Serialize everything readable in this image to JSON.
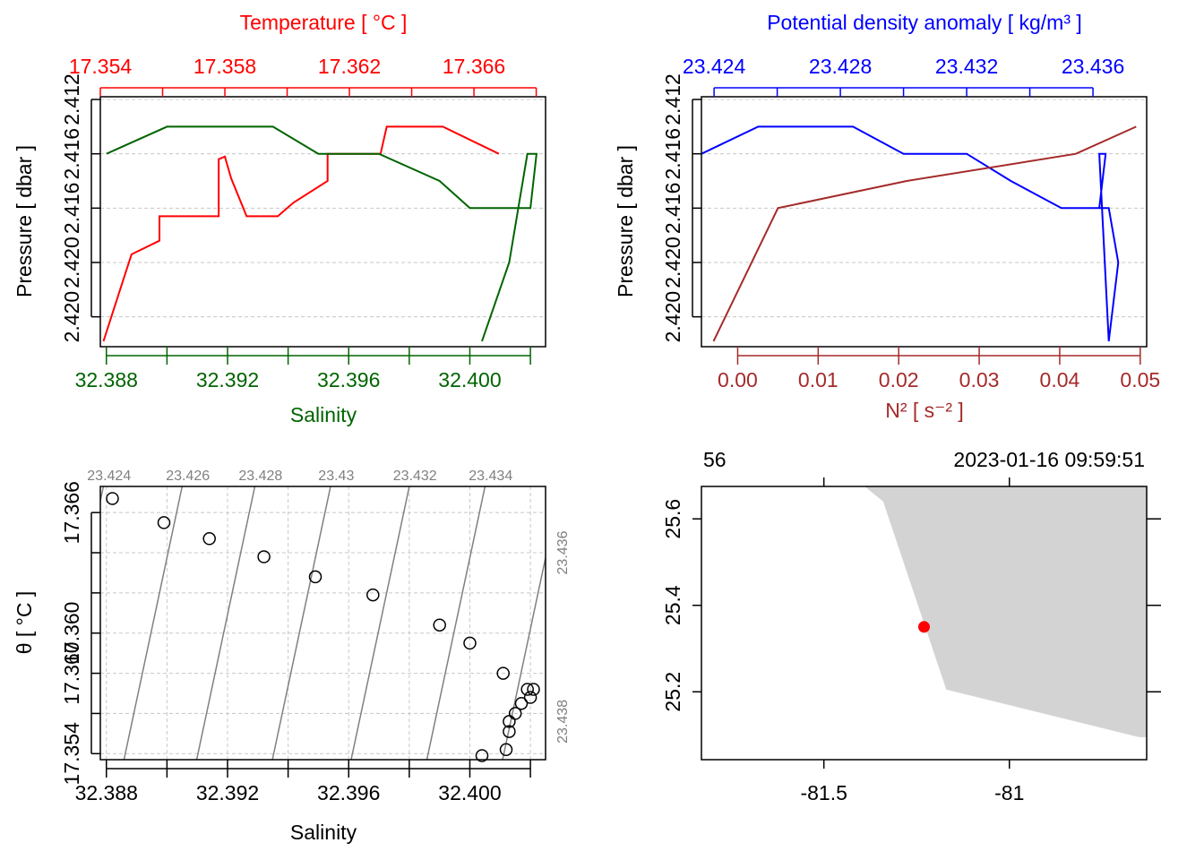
{
  "colors": {
    "temperature": "#ff0000",
    "salinity": "#006400",
    "density": "#0000ff",
    "n2": "#a52a2a",
    "grid": "#c8c8c8",
    "isopycnal": "#808080",
    "land": "#d3d3d3",
    "station": "#ff0000"
  },
  "chart_data": [
    {
      "id": "profile_TS",
      "type": "line",
      "ylabel": "Pressure [ dbar ]",
      "top_axis_label": "Temperature [ °C ]",
      "bottom_axis_label": "Salinity",
      "ylim": [
        2.4211,
        2.4119
      ],
      "yticks": [
        2.412,
        2.416,
        2.42
      ],
      "y_tick_labels": [
        "2.412",
        "2.416",
        "2.416",
        "2.420",
        "2.420"
      ],
      "temperature_xlim": [
        17.354,
        17.3683
      ],
      "temperature_ticks": [
        17.354,
        17.356,
        17.358,
        17.36,
        17.362,
        17.364,
        17.366,
        17.368
      ],
      "temperature_tick_labels": [
        "17.354",
        "17.358",
        "17.362",
        "17.366"
      ],
      "salinity_xlim": [
        32.3878,
        32.4025
      ],
      "salinity_ticks": [
        32.388,
        32.39,
        32.392,
        32.394,
        32.396,
        32.398,
        32.4,
        32.402
      ],
      "salinity_tick_labels": [
        "32.388",
        "32.392",
        "32.396",
        "32.400"
      ],
      "series": [
        {
          "name": "Temperature",
          "pressure": [
            2.4209,
            2.4177,
            2.4172,
            2.4163,
            2.4163,
            2.4142,
            2.4141,
            2.4149,
            2.4149,
            2.4163,
            2.4163,
            2.4158,
            2.415,
            2.414,
            2.414,
            2.413,
            2.413,
            2.414
          ],
          "values": [
            17.3541,
            17.355,
            17.3559,
            17.3559,
            17.3578,
            17.3578,
            17.358,
            17.3582,
            17.3582,
            17.3587,
            17.3597,
            17.3602,
            17.3613,
            17.3613,
            17.363,
            17.3632,
            17.365,
            17.3668
          ]
        },
        {
          "name": "Salinity",
          "pressure": [
            2.414,
            2.413,
            2.413,
            2.414,
            2.414,
            2.415,
            2.416,
            2.416,
            2.414,
            2.414,
            2.418,
            2.4209
          ],
          "values": [
            32.388,
            32.39,
            32.3935,
            32.395,
            32.397,
            32.399,
            32.4,
            32.402,
            32.4022,
            32.4019,
            32.4013,
            32.4004
          ]
        }
      ]
    },
    {
      "id": "profile_density_n2",
      "type": "line",
      "ylabel": "Pressure [ dbar ]",
      "top_axis_label": "Potential density anomaly [ kg/m³ ]",
      "bottom_axis_label": "N² [ s⁻² ]",
      "ylim": [
        2.4211,
        2.4119
      ],
      "y_tick_labels": [
        "2.412",
        "2.416",
        "2.416",
        "2.420",
        "2.420"
      ],
      "density_xlim": [
        23.4236,
        23.4377
      ],
      "density_ticks": [
        23.424,
        23.426,
        23.428,
        23.43,
        23.432,
        23.434,
        23.436
      ],
      "density_tick_labels": [
        "23.424",
        "23.428",
        "23.432",
        "23.436"
      ],
      "n2_xlim": [
        -0.0045,
        0.0508
      ],
      "n2_ticks": [
        0.0,
        0.01,
        0.02,
        0.03,
        0.04,
        0.05
      ],
      "n2_tick_labels": [
        "0.00",
        "0.01",
        "0.02",
        "0.03",
        "0.04",
        "0.05"
      ],
      "series": [
        {
          "name": "Potential density anomaly",
          "pressure": [
            2.414,
            2.413,
            2.413,
            2.414,
            2.414,
            2.415,
            2.416,
            2.416,
            2.418,
            2.4209,
            2.414,
            2.414,
            2.416
          ],
          "values": [
            23.4236,
            23.4254,
            23.4284,
            23.43,
            23.432,
            23.4334,
            23.435,
            23.4365,
            23.4368,
            23.4365,
            23.4362,
            23.4364,
            23.4362
          ]
        },
        {
          "name": "N2",
          "pressure": [
            2.4209,
            2.416,
            2.415,
            2.414,
            2.413,
            2.414,
            2.415,
            2.416
          ],
          "values": [
            -0.003,
            0.005,
            0.021,
            0.042,
            0.0495,
            0.042,
            0.021,
            0.005
          ]
        }
      ]
    },
    {
      "id": "ts_diagram",
      "type": "scatter",
      "xlabel": "Salinity",
      "ylabel": "θ [ °C ]",
      "xlim": [
        32.3878,
        32.4025
      ],
      "ylim": [
        17.3537,
        17.3673
      ],
      "x_tick_labels": [
        "32.388",
        "32.392",
        "32.396",
        "32.400"
      ],
      "y_tick_labels": [
        "17.354",
        "17.360",
        "17.360",
        "17.366"
      ],
      "x_ticks": [
        32.388,
        32.39,
        32.392,
        32.394,
        32.396,
        32.398,
        32.4,
        32.402
      ],
      "y_ticks": [
        17.354,
        17.356,
        17.358,
        17.36,
        17.362,
        17.364,
        17.366
      ],
      "isopycnal_labels_top": [
        "23.424",
        "23.426",
        "23.428",
        "23.43",
        "23.432",
        "23.434"
      ],
      "isopycnal_labels_right": [
        "23.436",
        "23.438"
      ],
      "isopycnal_top_salinity": [
        32.388,
        32.3906,
        32.393,
        32.3955,
        32.3981,
        32.4006
      ],
      "isopycnal_right_temperature": [
        17.364,
        17.3556
      ],
      "isopycnal_left_temperature": [
        17.3653,
        17.3569
      ],
      "isopycnal_bottom_salinity": [
        32.3891,
        32.3916,
        32.3941,
        32.3966,
        32.3991,
        32.4016
      ],
      "points": {
        "salinity": [
          32.3882,
          32.3899,
          32.3914,
          32.3932,
          32.3949,
          32.3968,
          32.399,
          32.4,
          32.4011,
          32.4019,
          32.4021,
          32.402,
          32.4017,
          32.4015,
          32.4013,
          32.4013,
          32.4012,
          32.4004
        ],
        "theta": [
          17.3667,
          17.3655,
          17.3647,
          17.3638,
          17.3628,
          17.3619,
          17.3604,
          17.3595,
          17.358,
          17.3572,
          17.3572,
          17.3568,
          17.3565,
          17.356,
          17.3556,
          17.3551,
          17.3542,
          17.3539
        ]
      }
    },
    {
      "id": "station_map",
      "type": "scatter",
      "station_label": "56",
      "datetime_label": "2023-01-16 09:59:51",
      "xlim": [
        -81.83,
        -80.63
      ],
      "ylim": [
        25.043,
        25.675
      ],
      "x_ticks": [
        -81.5,
        -81.0
      ],
      "x_tick_labels": [
        "-81.5",
        "-81"
      ],
      "y_ticks": [
        25.2,
        25.4,
        25.6
      ],
      "y_tick_labels": [
        "25.2",
        "25.4",
        "25.6"
      ],
      "land_polygon": {
        "lon": [
          -81.39,
          -81.34,
          -81.17,
          -80.65,
          -80.63,
          -80.63
        ],
        "lat": [
          25.675,
          25.64,
          25.205,
          25.095,
          25.095,
          25.675
        ]
      },
      "station": {
        "lon": -81.23,
        "lat": 25.35
      }
    }
  ]
}
